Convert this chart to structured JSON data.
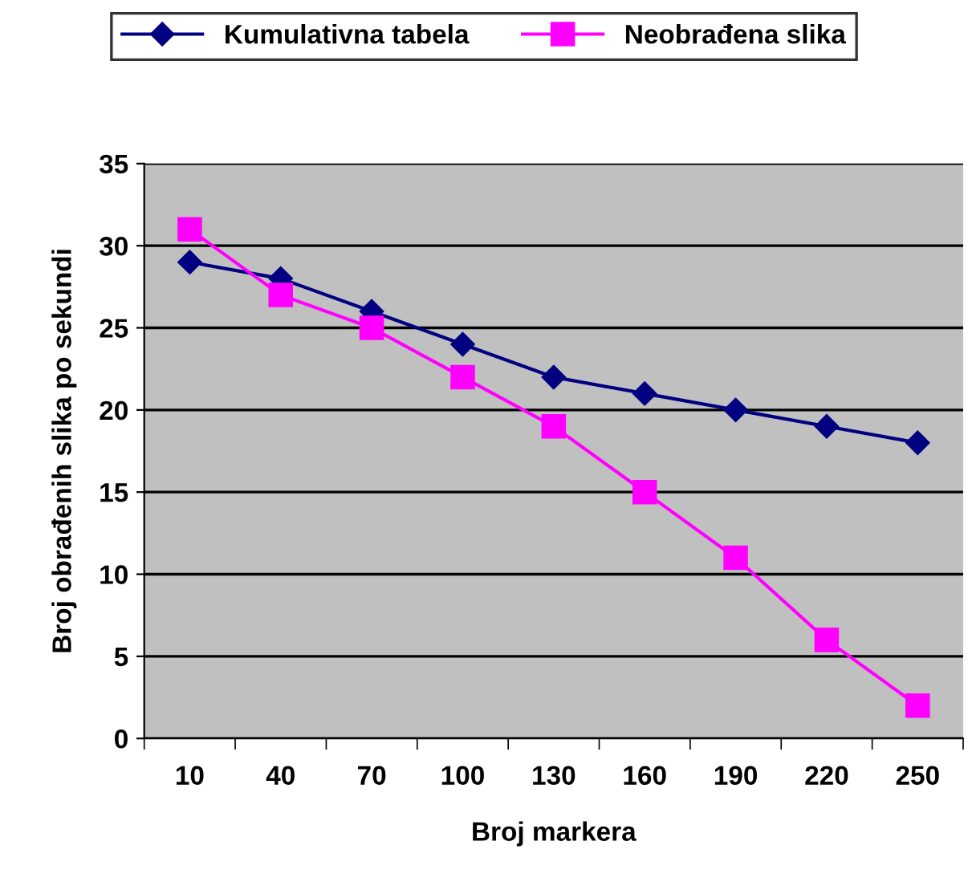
{
  "chart_data": {
    "type": "line",
    "xlabel": "Broj markera",
    "ylabel": "Broj obrađenih slika po sekundi",
    "categories": [
      "10",
      "40",
      "70",
      "100",
      "130",
      "160",
      "190",
      "220",
      "250"
    ],
    "series": [
      {
        "name": "Kumulativna tabela",
        "color": "#000080",
        "marker": "diamond",
        "values": [
          29,
          28,
          26,
          24,
          22,
          21,
          20,
          19,
          18
        ]
      },
      {
        "name": "Neobrađena slika",
        "color": "#ff00ff",
        "marker": "square",
        "values": [
          31,
          27,
          25,
          22,
          19,
          15,
          11,
          6,
          2
        ]
      }
    ],
    "ylim": [
      0,
      35
    ],
    "yticks": [
      0,
      5,
      10,
      15,
      20,
      25,
      30,
      35
    ],
    "grid": "y",
    "legend": "top",
    "line_style": "solid"
  }
}
